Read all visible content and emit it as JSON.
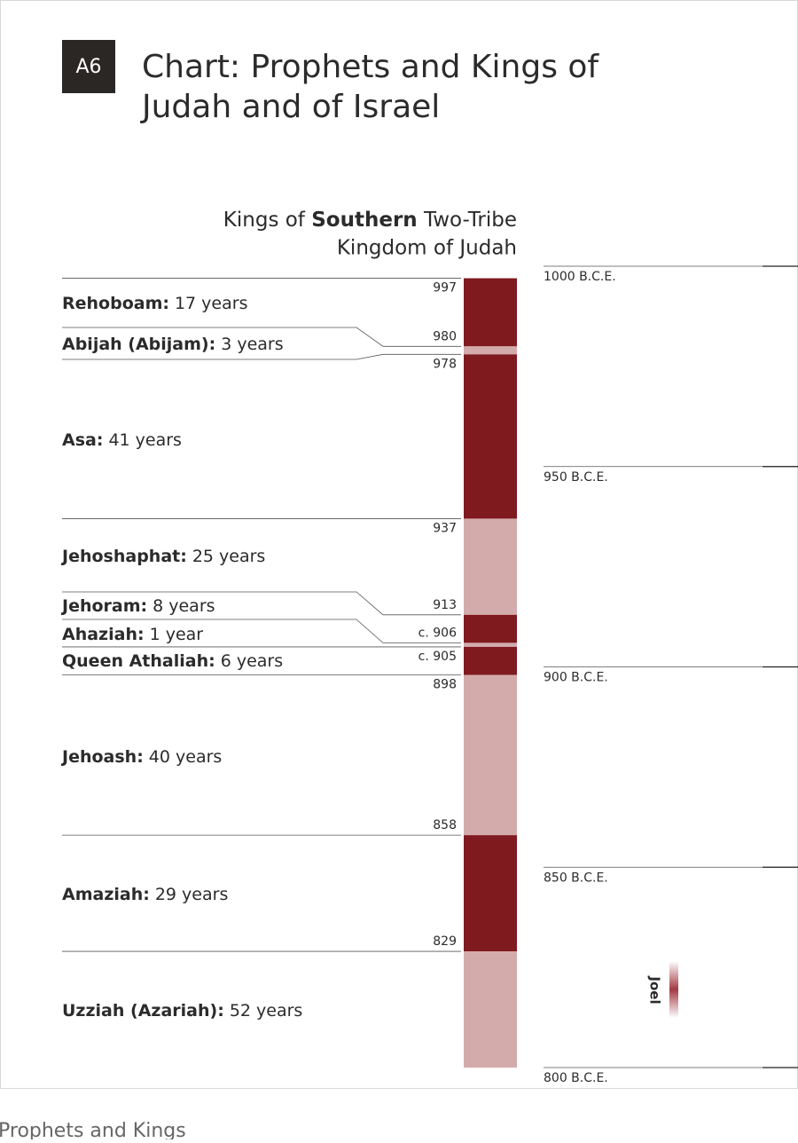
{
  "header": {
    "badge": "A6",
    "title_lines": [
      "Chart: Prophets and Kings of",
      "Judah and of Israel"
    ]
  },
  "column_heading": {
    "line1_parts": [
      "Kings of ",
      "Southern",
      " Two-Tribe"
    ],
    "line2": "Kingdom of Judah"
  },
  "timeline": {
    "ylim": [
      1000,
      800
    ],
    "ticks": [
      {
        "value": 1000,
        "label": "1000 B.C.E."
      },
      {
        "value": 950,
        "label": "950 B.C.E."
      },
      {
        "value": 900,
        "label": "900 B.C.E."
      },
      {
        "value": 850,
        "label": "850 B.C.E."
      },
      {
        "value": 800,
        "label": "800 B.C.E."
      }
    ]
  },
  "kings": [
    {
      "name": "Rehoboam:",
      "reign": "17 years",
      "start": 997,
      "color": "#7f1a1f"
    },
    {
      "name": "Abijah (Abijam):",
      "reign": "3 years",
      "start": 980,
      "color": "#d4abab"
    },
    {
      "name": "Asa:",
      "reign": "41 years",
      "start": 978,
      "color": "#7f1a1f"
    },
    {
      "name": "Jehoshaphat:",
      "reign": "25 years",
      "start": 937,
      "color": "#d4abab"
    },
    {
      "name": "Jehoram:",
      "reign": "8 years",
      "start": 913,
      "color": "#7f1a1f"
    },
    {
      "name": "Ahaziah:",
      "reign": "1 year",
      "start": {
        "value": 906,
        "label": "c. 906"
      },
      "color": "#d4abab"
    },
    {
      "name": "Queen Athaliah:",
      "reign": "6 years",
      "start": {
        "value": 905,
        "label": "c. 905"
      },
      "color": "#7f1a1f"
    },
    {
      "name": "Jehoash:",
      "reign": "40 years",
      "start": 898,
      "color": "#d4abab"
    },
    {
      "name": "Amaziah:",
      "reign": "29 years",
      "start": 858,
      "color": "#7f1a1f"
    },
    {
      "name": "Uzziah (Azariah):",
      "reign": "52 years",
      "start": 829,
      "color": "#d4abab"
    }
  ],
  "prophets": [
    {
      "name": "Joel"
    }
  ],
  "footer": "Prophets and Kings"
}
